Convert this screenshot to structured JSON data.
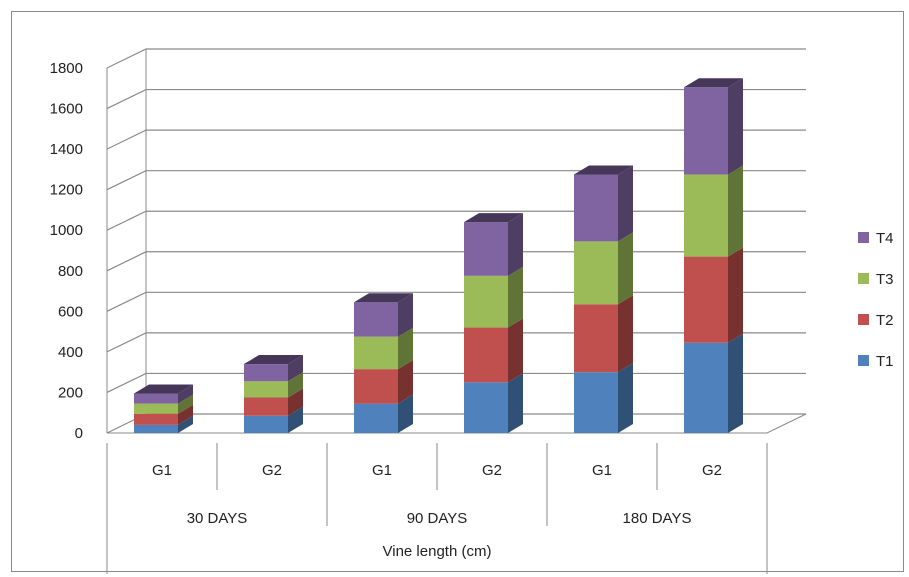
{
  "chart_data": {
    "type": "bar",
    "stacked": true,
    "three_d": true,
    "x_groups": [
      {
        "label": "30 DAYS",
        "categories": [
          "G1",
          "G2"
        ]
      },
      {
        "label": "90 DAYS",
        "categories": [
          "G1",
          "G2"
        ]
      },
      {
        "label": "180 DAYS",
        "categories": [
          "G1",
          "G2"
        ]
      }
    ],
    "categories": [
      "G1",
      "G2",
      "G1",
      "G2",
      "G1",
      "G2"
    ],
    "series": [
      {
        "name": "T1",
        "color": "#4F81BD",
        "values": [
          40,
          85,
          145,
          250,
          300,
          445
        ]
      },
      {
        "name": "T2",
        "color": "#C0504D",
        "values": [
          55,
          90,
          170,
          270,
          335,
          425
        ]
      },
      {
        "name": "T3",
        "color": "#9BBB59",
        "values": [
          50,
          80,
          160,
          255,
          310,
          405
        ]
      },
      {
        "name": "T4",
        "color": "#8064A2",
        "values": [
          50,
          85,
          170,
          265,
          330,
          430
        ]
      }
    ],
    "xlabel": "Vine length (cm)",
    "ylim": [
      0,
      1800
    ],
    "yticks": [
      0,
      200,
      400,
      600,
      800,
      1000,
      1200,
      1400,
      1600,
      1800
    ],
    "grid": true,
    "legend": "right"
  }
}
